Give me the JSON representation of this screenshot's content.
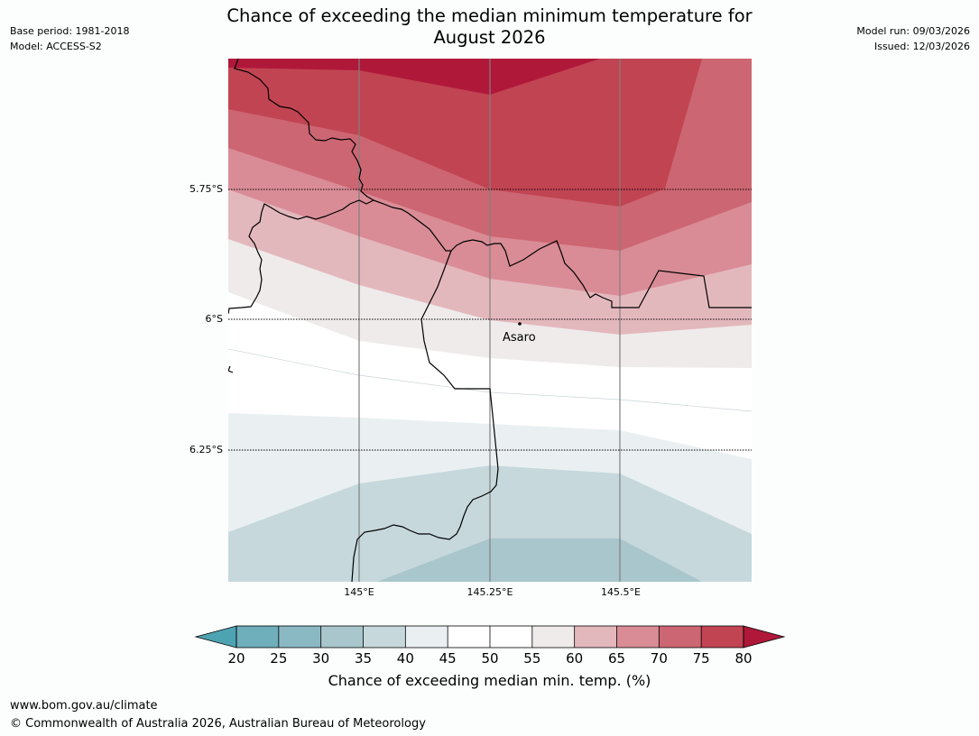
{
  "header": {
    "title_line1": "Chance of exceeding the median minimum temperature for",
    "title_line2": "August 2026",
    "base_period": "Base period: 1981-2018",
    "model": "Model: ACCESS-S2",
    "model_run": "Model run: 09/03/2026",
    "issued": "Issued: 12/03/2026"
  },
  "map": {
    "lat_labels": [
      "5.75°S",
      "6°S",
      "6.25°S"
    ],
    "lon_labels": [
      "145°E",
      "145.25°E",
      "145.5°E"
    ],
    "place": "Asaro"
  },
  "colorbar": {
    "ticks": [
      "20",
      "25",
      "30",
      "35",
      "40",
      "45",
      "50",
      "55",
      "60",
      "65",
      "70",
      "75",
      "80"
    ],
    "colors": [
      "#6faebb",
      "#8ab9c4",
      "#a8c6cb",
      "#c6d8dc",
      "#eaf0f2",
      "#ffffff",
      "#ffffff",
      "#efebeb",
      "#e3b8bd",
      "#d98c96",
      "#cc6672",
      "#c14452"
    ],
    "under_color": "#4ea3b2",
    "over_color": "#b0183a",
    "label": "Chance of exceeding median min. temp. (%)"
  },
  "footer": {
    "url": "www.bom.gov.au/climate",
    "copyright": "© Commonwealth of Australia 2026, Australian Bureau of Meteorology"
  }
}
